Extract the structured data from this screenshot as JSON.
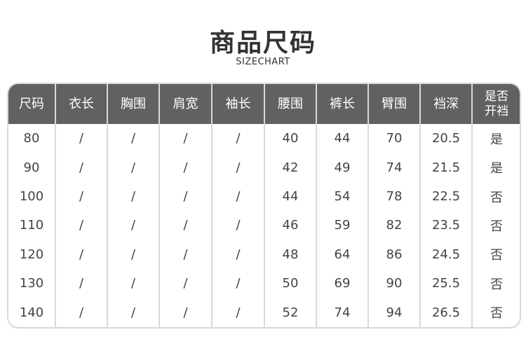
{
  "title": "商品尺码",
  "subtitle": "SIZECHART",
  "headers": [
    "尺码",
    "衣长",
    "胸围",
    "肩宽",
    "袖长",
    "腰围",
    "裤长",
    "臂围",
    "裆深",
    "是否开裆"
  ],
  "rows": [
    [
      "80",
      "/",
      "/",
      "/",
      "/",
      "40",
      "44",
      "70",
      "20.5",
      "是"
    ],
    [
      "90",
      "/",
      "/",
      "/",
      "/",
      "42",
      "49",
      "74",
      "21.5",
      "是"
    ],
    [
      "100",
      "/",
      "/",
      "/",
      "/",
      "44",
      "54",
      "78",
      "22.5",
      "否"
    ],
    [
      "110",
      "/",
      "/",
      "/",
      "/",
      "46",
      "59",
      "82",
      "23.5",
      "否"
    ],
    [
      "120",
      "/",
      "/",
      "/",
      "/",
      "48",
      "64",
      "86",
      "24.5",
      "否"
    ],
    [
      "130",
      "/",
      "/",
      "/",
      "/",
      "50",
      "69",
      "90",
      "25.5",
      "否"
    ],
    [
      "140",
      "/",
      "/",
      "/",
      "/",
      "52",
      "74",
      "94",
      "26.5",
      "否"
    ]
  ],
  "colors": {
    "header_bg": "#616161",
    "border": "#d9d9d9"
  }
}
